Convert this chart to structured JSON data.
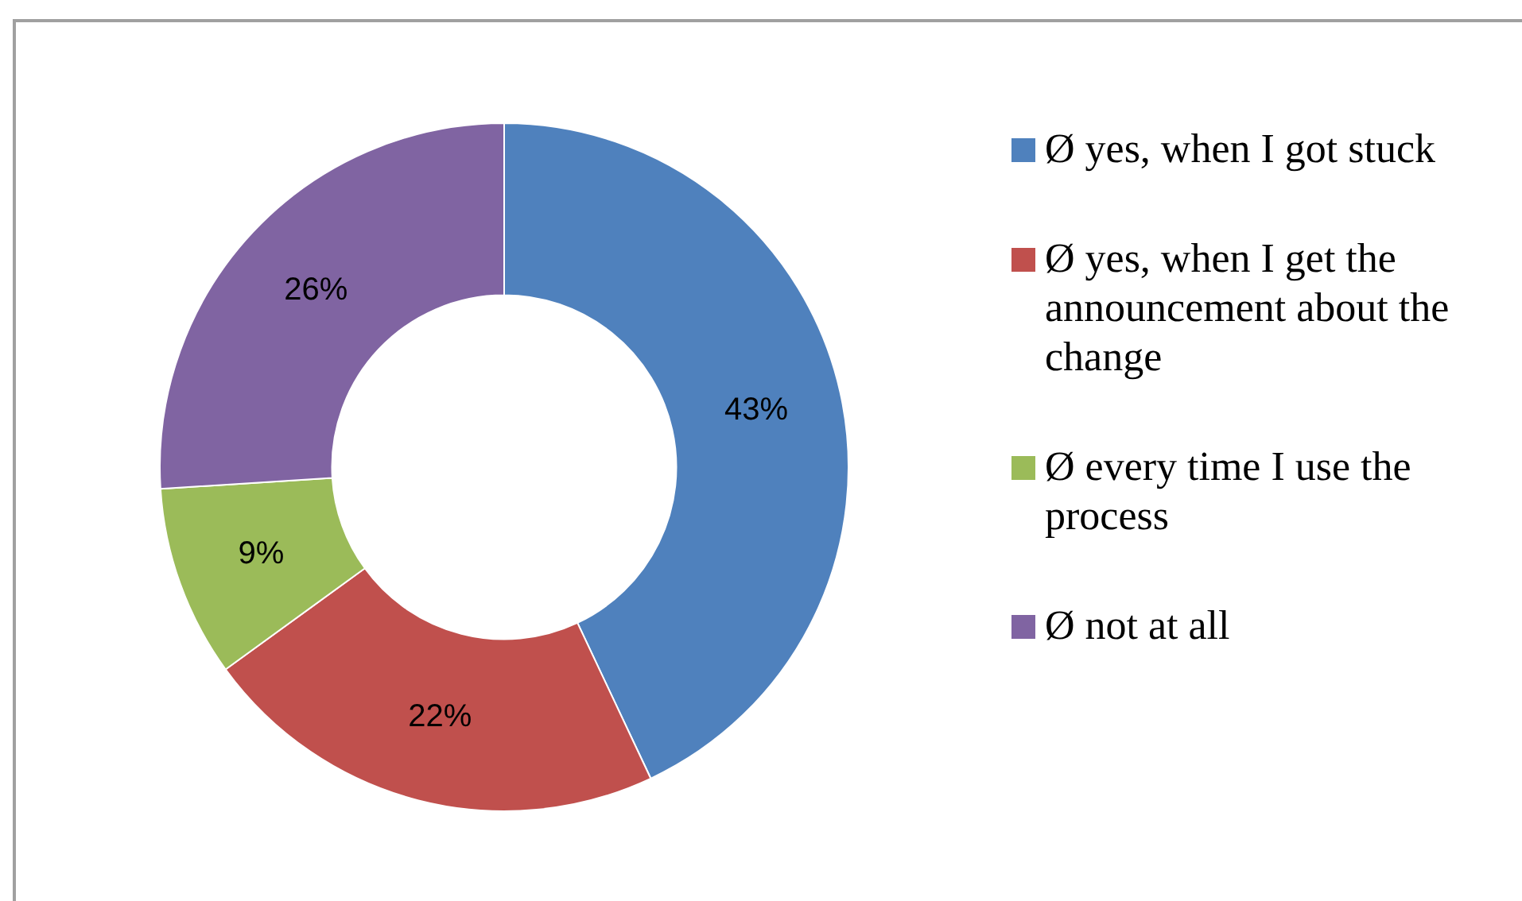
{
  "chart_data": {
    "type": "donut",
    "categories": [
      "Ø  yes, when I got stuck",
      "Ø  yes, when I get the announcement about the change",
      "Ø  every time I use the process",
      "Ø  not at all"
    ],
    "values": [
      43,
      22,
      9,
      26
    ],
    "colors": [
      "#4f81bd",
      "#c0504d",
      "#9bbb59",
      "#8064a2"
    ],
    "value_labels": [
      "43%",
      "22%",
      "9%",
      "26%"
    ],
    "legend": "right"
  }
}
